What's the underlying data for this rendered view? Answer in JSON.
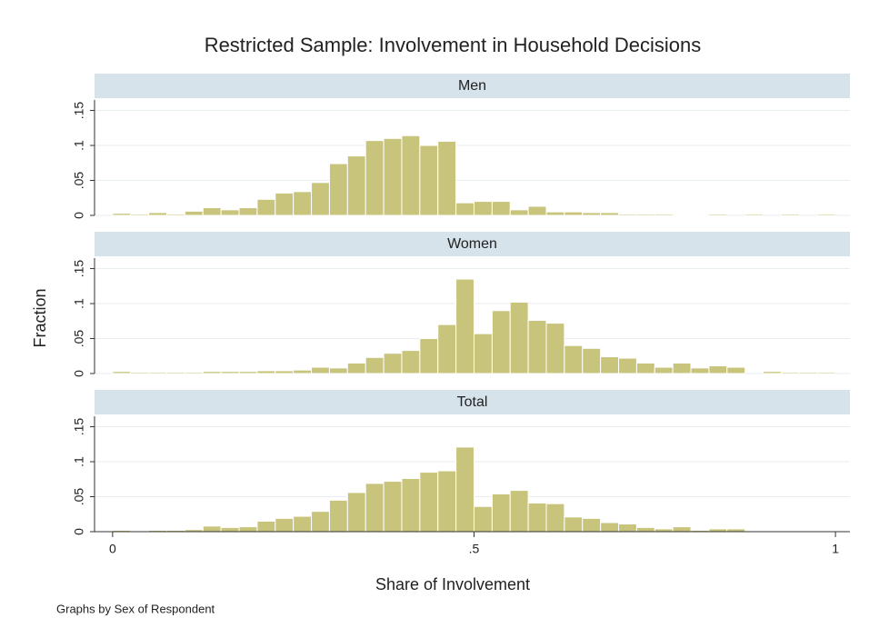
{
  "title": "Restricted Sample: Involvement in Household Decisions",
  "xlabel": "Share of Involvement",
  "ylabel": "Fraction",
  "note": "Graphs by Sex of Respondent",
  "chart_data": [
    {
      "type": "histogram",
      "title": "Men",
      "color": "#c9c47c",
      "grid": true,
      "bins": [
        0,
        0.025,
        0.05,
        0.075,
        0.1,
        0.125,
        0.15,
        0.175,
        0.2,
        0.225,
        0.25,
        0.275,
        0.3,
        0.325,
        0.35,
        0.375,
        0.4,
        0.425,
        0.45,
        0.475,
        0.5,
        0.525,
        0.55,
        0.575,
        0.6,
        0.625,
        0.65,
        0.675,
        0.7,
        0.725,
        0.75,
        0.775,
        0.8,
        0.825,
        0.85,
        0.875,
        0.9,
        0.925,
        0.95,
        0.975,
        1
      ],
      "values": [
        0.003,
        0.002,
        0.004,
        0.002,
        0.006,
        0.011,
        0.008,
        0.011,
        0.023,
        0.032,
        0.034,
        0.047,
        0.074,
        0.085,
        0.107,
        0.11,
        0.114,
        0.1,
        0.106,
        0.018,
        0.02,
        0.02,
        0.008,
        0.013,
        0.005,
        0.005,
        0.004,
        0.004,
        0.002,
        0.002,
        0.002,
        0.001,
        0.001,
        0.002,
        0,
        0.002,
        0,
        0.002,
        0,
        0.002
      ],
      "xlim": [
        -0.025,
        1.02
      ],
      "ylim": [
        0,
        0.165
      ],
      "yticks": [
        0,
        {
          "value": 0.05,
          "label": ".05"
        },
        {
          "value": 0.1,
          "label": ".1"
        },
        {
          "value": 0.15,
          "label": ".15"
        }
      ]
    },
    {
      "type": "histogram",
      "title": "Women",
      "color": "#c9c47c",
      "grid": true,
      "bins": [
        0,
        0.025,
        0.05,
        0.075,
        0.1,
        0.125,
        0.15,
        0.175,
        0.2,
        0.225,
        0.25,
        0.275,
        0.3,
        0.325,
        0.35,
        0.375,
        0.4,
        0.425,
        0.45,
        0.475,
        0.5,
        0.525,
        0.55,
        0.575,
        0.6,
        0.625,
        0.65,
        0.675,
        0.7,
        0.725,
        0.75,
        0.775,
        0.8,
        0.825,
        0.85,
        0.875,
        0.9,
        0.925,
        0.95,
        0.975,
        1
      ],
      "values": [
        0.003,
        0.002,
        0.002,
        0.002,
        0.002,
        0.003,
        0.003,
        0.003,
        0.004,
        0.004,
        0.005,
        0.009,
        0.008,
        0.015,
        0.023,
        0.029,
        0.033,
        0.05,
        0.07,
        0.135,
        0.057,
        0.09,
        0.102,
        0.076,
        0.072,
        0.04,
        0.036,
        0.024,
        0.022,
        0.015,
        0.009,
        0.015,
        0.008,
        0.011,
        0.009,
        0,
        0.003,
        0.002,
        0.002,
        0.002
      ],
      "xlim": [
        -0.025,
        1.02
      ],
      "ylim": [
        0,
        0.165
      ],
      "yticks": [
        0,
        {
          "value": 0.05,
          "label": ".05"
        },
        {
          "value": 0.1,
          "label": ".1"
        },
        {
          "value": 0.15,
          "label": ".15"
        }
      ]
    },
    {
      "type": "histogram",
      "title": "Total",
      "color": "#c9c47c",
      "grid": true,
      "bins": [
        0,
        0.025,
        0.05,
        0.075,
        0.1,
        0.125,
        0.15,
        0.175,
        0.2,
        0.225,
        0.25,
        0.275,
        0.3,
        0.325,
        0.35,
        0.375,
        0.4,
        0.425,
        0.45,
        0.475,
        0.5,
        0.525,
        0.55,
        0.575,
        0.6,
        0.625,
        0.65,
        0.675,
        0.7,
        0.725,
        0.75,
        0.775,
        0.8,
        0.825,
        0.85,
        0.875,
        0.9,
        0.925,
        0.95,
        0.975,
        1
      ],
      "values": [
        0.002,
        0.001,
        0.002,
        0.002,
        0.003,
        0.008,
        0.006,
        0.007,
        0.015,
        0.019,
        0.022,
        0.029,
        0.045,
        0.056,
        0.069,
        0.072,
        0.076,
        0.085,
        0.087,
        0.121,
        0.036,
        0.054,
        0.059,
        0.041,
        0.04,
        0.021,
        0.019,
        0.013,
        0.011,
        0.006,
        0.004,
        0.007,
        0.002,
        0.004,
        0.004,
        0.001,
        0,
        0.001,
        0.001,
        0.001
      ],
      "xlim": [
        -0.025,
        1.02
      ],
      "ylim": [
        0,
        0.165
      ],
      "yticks": [
        0,
        {
          "value": 0.05,
          "label": ".05"
        },
        {
          "value": 0.1,
          "label": ".1"
        },
        {
          "value": 0.15,
          "label": ".15"
        }
      ],
      "xticks": [
        0,
        {
          "value": 0.5,
          "label": ".5"
        },
        1
      ]
    }
  ]
}
